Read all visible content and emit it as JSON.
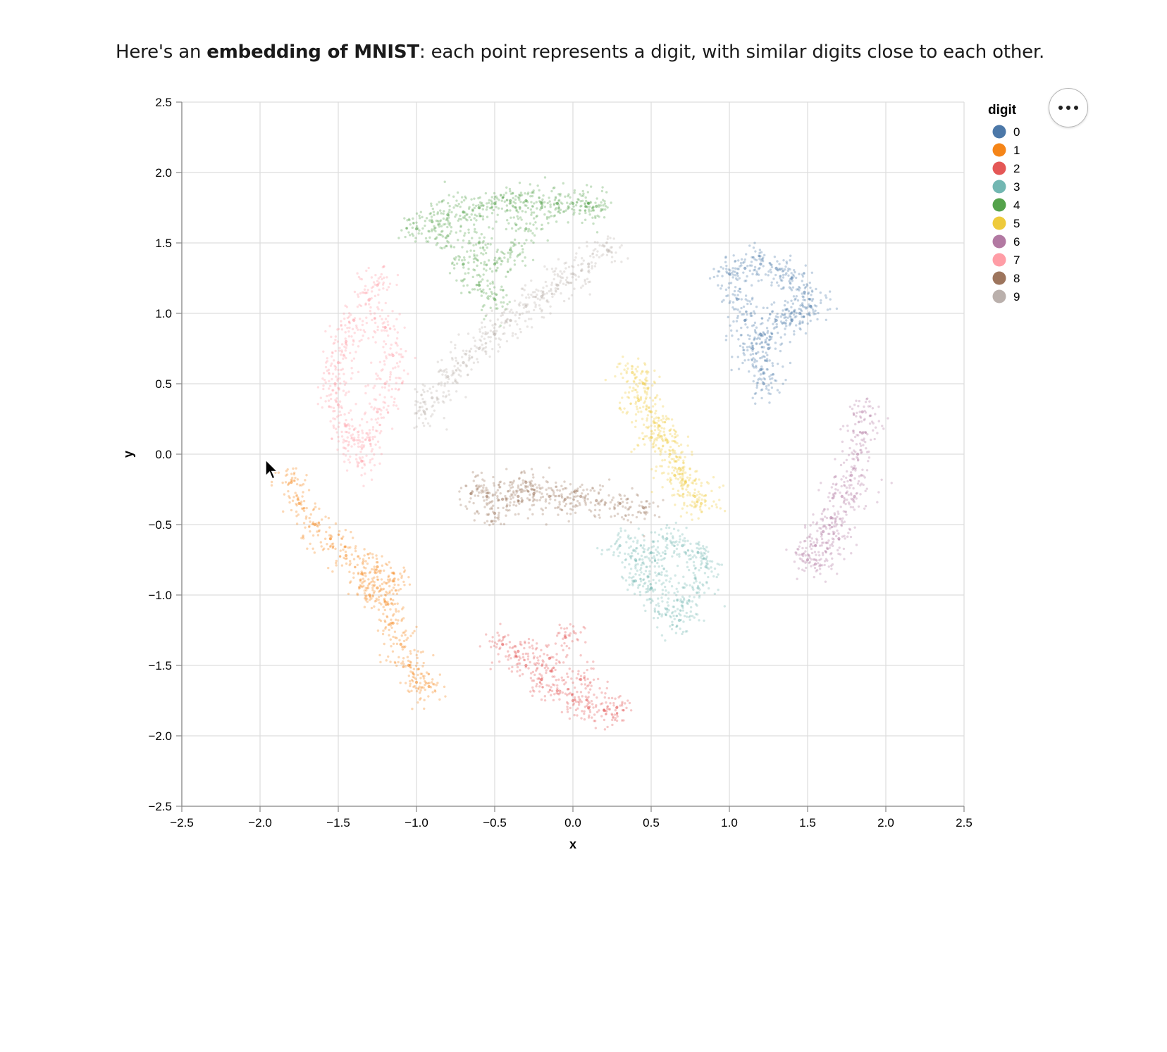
{
  "intro": {
    "prefix": "Here's an ",
    "bold": "embedding of MNIST",
    "suffix": ": each point represents a digit, with similar digits close to each other."
  },
  "menu": {
    "icon": "ellipsis-icon"
  },
  "chart_data": {
    "type": "scatter",
    "xlabel": "x",
    "ylabel": "y",
    "xlim": [
      -2.5,
      2.5
    ],
    "ylim": [
      -2.5,
      2.5
    ],
    "x_ticks": [
      "−2.5",
      "−2.0",
      "−1.5",
      "−1.0",
      "−0.5",
      "0.0",
      "0.5",
      "1.0",
      "1.5",
      "2.0",
      "2.5"
    ],
    "y_ticks": [
      "2.5",
      "2.0",
      "1.5",
      "1.0",
      "0.5",
      "0.0",
      "−0.5",
      "−1.0",
      "−1.5",
      "−2.0",
      "−2.5"
    ],
    "grid": true,
    "legend": {
      "title": "digit",
      "placement": "right"
    },
    "series": [
      {
        "name": "0",
        "color": "#4c78a8",
        "points": [
          [
            1.0,
            1.28
          ],
          [
            1.1,
            1.32
          ],
          [
            1.2,
            1.35
          ],
          [
            1.3,
            1.32
          ],
          [
            1.4,
            1.25
          ],
          [
            1.48,
            1.15
          ],
          [
            1.52,
            1.05
          ],
          [
            1.45,
            1.0
          ],
          [
            1.05,
            1.1
          ],
          [
            1.1,
            0.95
          ],
          [
            1.2,
            0.85
          ],
          [
            1.3,
            0.95
          ],
          [
            1.4,
            0.95
          ],
          [
            1.15,
            0.75
          ],
          [
            1.25,
            0.75
          ],
          [
            1.2,
            0.6
          ],
          [
            1.22,
            0.5
          ]
        ]
      },
      {
        "name": "1",
        "color": "#f58518",
        "points": [
          [
            -1.8,
            -0.2
          ],
          [
            -1.75,
            -0.35
          ],
          [
            -1.65,
            -0.5
          ],
          [
            -1.55,
            -0.6
          ],
          [
            -1.45,
            -0.72
          ],
          [
            -1.35,
            -0.85
          ],
          [
            -1.25,
            -0.95
          ],
          [
            -1.2,
            -1.05
          ],
          [
            -1.3,
            -1.0
          ],
          [
            -1.15,
            -1.2
          ],
          [
            -1.1,
            -1.35
          ],
          [
            -1.05,
            -1.5
          ],
          [
            -1.0,
            -1.62
          ],
          [
            -0.92,
            -1.65
          ],
          [
            -1.25,
            -0.8
          ],
          [
            -1.15,
            -0.9
          ]
        ]
      },
      {
        "name": "2",
        "color": "#e45756",
        "points": [
          [
            -0.45,
            -1.35
          ],
          [
            -0.35,
            -1.4
          ],
          [
            -0.3,
            -1.5
          ],
          [
            -0.2,
            -1.6
          ],
          [
            -0.1,
            -1.68
          ],
          [
            0.0,
            -1.75
          ],
          [
            0.1,
            -1.8
          ],
          [
            0.2,
            -1.82
          ],
          [
            0.28,
            -1.8
          ],
          [
            -0.15,
            -1.45
          ],
          [
            -0.05,
            -1.3
          ],
          [
            0.05,
            -1.6
          ]
        ]
      },
      {
        "name": "3",
        "color": "#72b7b2",
        "points": [
          [
            0.3,
            -0.65
          ],
          [
            0.4,
            -0.75
          ],
          [
            0.5,
            -0.7
          ],
          [
            0.6,
            -0.6
          ],
          [
            0.7,
            -0.65
          ],
          [
            0.8,
            -0.7
          ],
          [
            0.85,
            -0.8
          ],
          [
            0.8,
            -0.95
          ],
          [
            0.7,
            -1.05
          ],
          [
            0.6,
            -1.1
          ],
          [
            0.5,
            -0.95
          ],
          [
            0.4,
            -0.9
          ],
          [
            0.68,
            -1.18
          ],
          [
            0.55,
            -0.85
          ]
        ]
      },
      {
        "name": "4",
        "color": "#54a24b",
        "points": [
          [
            -1.0,
            1.6
          ],
          [
            -0.9,
            1.65
          ],
          [
            -0.8,
            1.7
          ],
          [
            -0.7,
            1.72
          ],
          [
            -0.6,
            1.75
          ],
          [
            -0.5,
            1.78
          ],
          [
            -0.4,
            1.8
          ],
          [
            -0.3,
            1.8
          ],
          [
            -0.2,
            1.75
          ],
          [
            -0.1,
            1.78
          ],
          [
            0.0,
            1.78
          ],
          [
            0.1,
            1.78
          ],
          [
            0.15,
            1.76
          ],
          [
            -0.8,
            1.55
          ],
          [
            -0.6,
            1.5
          ],
          [
            -0.5,
            1.35
          ],
          [
            -0.4,
            1.45
          ],
          [
            -0.7,
            1.35
          ],
          [
            -0.6,
            1.2
          ],
          [
            -0.5,
            1.1
          ],
          [
            -0.3,
            1.6
          ]
        ]
      },
      {
        "name": "5",
        "color": "#eeca3b",
        "points": [
          [
            0.38,
            0.58
          ],
          [
            0.45,
            0.5
          ],
          [
            0.42,
            0.38
          ],
          [
            0.5,
            0.3
          ],
          [
            0.55,
            0.2
          ],
          [
            0.6,
            0.1
          ],
          [
            0.62,
            0.0
          ],
          [
            0.68,
            -0.1
          ],
          [
            0.72,
            -0.2
          ],
          [
            0.78,
            -0.3
          ],
          [
            0.82,
            -0.35
          ],
          [
            0.5,
            0.12
          ],
          [
            0.65,
            -0.15
          ]
        ]
      },
      {
        "name": "6",
        "color": "#b279a2",
        "points": [
          [
            1.85,
            0.3
          ],
          [
            1.85,
            0.15
          ],
          [
            1.82,
            0.0
          ],
          [
            1.78,
            -0.15
          ],
          [
            1.72,
            -0.3
          ],
          [
            1.65,
            -0.45
          ],
          [
            1.6,
            -0.55
          ],
          [
            1.55,
            -0.65
          ],
          [
            1.5,
            -0.75
          ],
          [
            1.55,
            -0.78
          ],
          [
            1.7,
            -0.6
          ],
          [
            1.8,
            -0.3
          ]
        ]
      },
      {
        "name": "7",
        "color": "#ff9da6",
        "points": [
          [
            -1.25,
            1.2
          ],
          [
            -1.3,
            1.1
          ],
          [
            -1.4,
            0.95
          ],
          [
            -1.45,
            0.8
          ],
          [
            -1.5,
            0.65
          ],
          [
            -1.52,
            0.5
          ],
          [
            -1.5,
            0.35
          ],
          [
            -1.45,
            0.2
          ],
          [
            -1.4,
            0.1
          ],
          [
            -1.35,
            -0.05
          ],
          [
            -1.2,
            0.9
          ],
          [
            -1.15,
            0.7
          ],
          [
            -1.2,
            0.5
          ],
          [
            -1.25,
            0.3
          ],
          [
            -1.3,
            0.1
          ]
        ]
      },
      {
        "name": "8",
        "color": "#9d755d",
        "points": [
          [
            -0.65,
            -0.28
          ],
          [
            -0.55,
            -0.3
          ],
          [
            -0.45,
            -0.32
          ],
          [
            -0.35,
            -0.3
          ],
          [
            -0.25,
            -0.28
          ],
          [
            -0.15,
            -0.3
          ],
          [
            -0.05,
            -0.32
          ],
          [
            0.05,
            -0.3
          ],
          [
            0.15,
            -0.33
          ],
          [
            0.3,
            -0.35
          ],
          [
            0.45,
            -0.38
          ],
          [
            -0.5,
            -0.42
          ],
          [
            -0.3,
            -0.2
          ]
        ]
      },
      {
        "name": "9",
        "color": "#bab0ac",
        "points": [
          [
            0.22,
            1.45
          ],
          [
            0.1,
            1.35
          ],
          [
            0.0,
            1.28
          ],
          [
            -0.1,
            1.2
          ],
          [
            -0.2,
            1.12
          ],
          [
            -0.3,
            1.05
          ],
          [
            -0.4,
            0.95
          ],
          [
            -0.5,
            0.85
          ],
          [
            -0.6,
            0.75
          ],
          [
            -0.7,
            0.65
          ],
          [
            -0.8,
            0.55
          ],
          [
            -0.9,
            0.4
          ],
          [
            -0.95,
            0.3
          ]
        ]
      }
    ]
  }
}
